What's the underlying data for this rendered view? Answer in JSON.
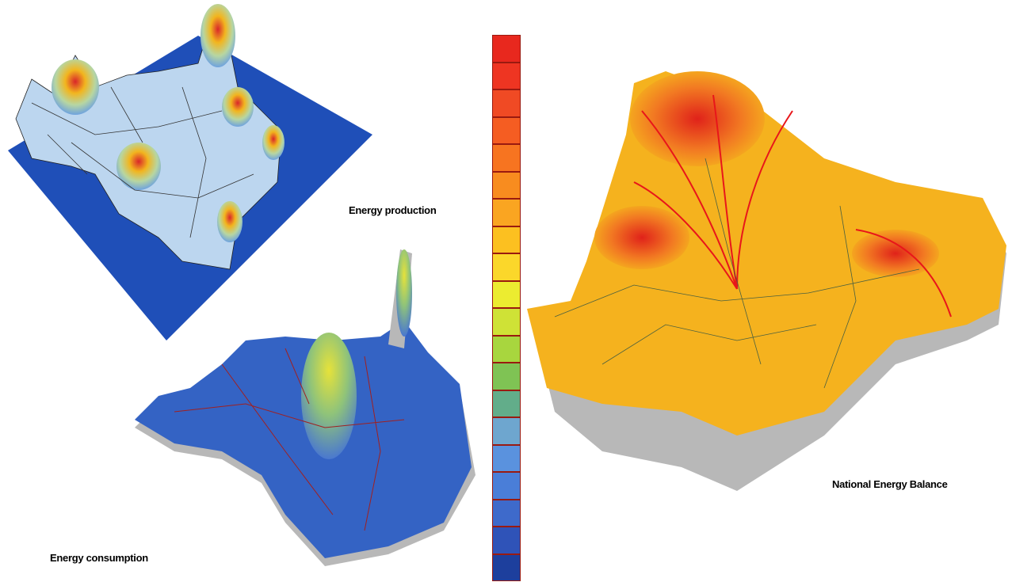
{
  "captions": {
    "production": "Energy production",
    "consumption": "Energy consumption",
    "balance": "National Energy Balance"
  },
  "legend": {
    "colors": [
      "#e8281e",
      "#ee3522",
      "#f04a24",
      "#f55d22",
      "#f77420",
      "#f88c1f",
      "#faa521",
      "#fcc020",
      "#fbd72a",
      "#ecec30",
      "#cfe236",
      "#a8d63e",
      "#7fc354",
      "#62ad8a",
      "#6ea6cf",
      "#5a92de",
      "#4a7ed8",
      "#3e6acb",
      "#2f53b8",
      "#1d3f9d"
    ]
  },
  "colors": {
    "base_blue": "#1f4fb8",
    "balance_orange": "#f5b21e",
    "wall_gray": "#b8b8b8"
  }
}
